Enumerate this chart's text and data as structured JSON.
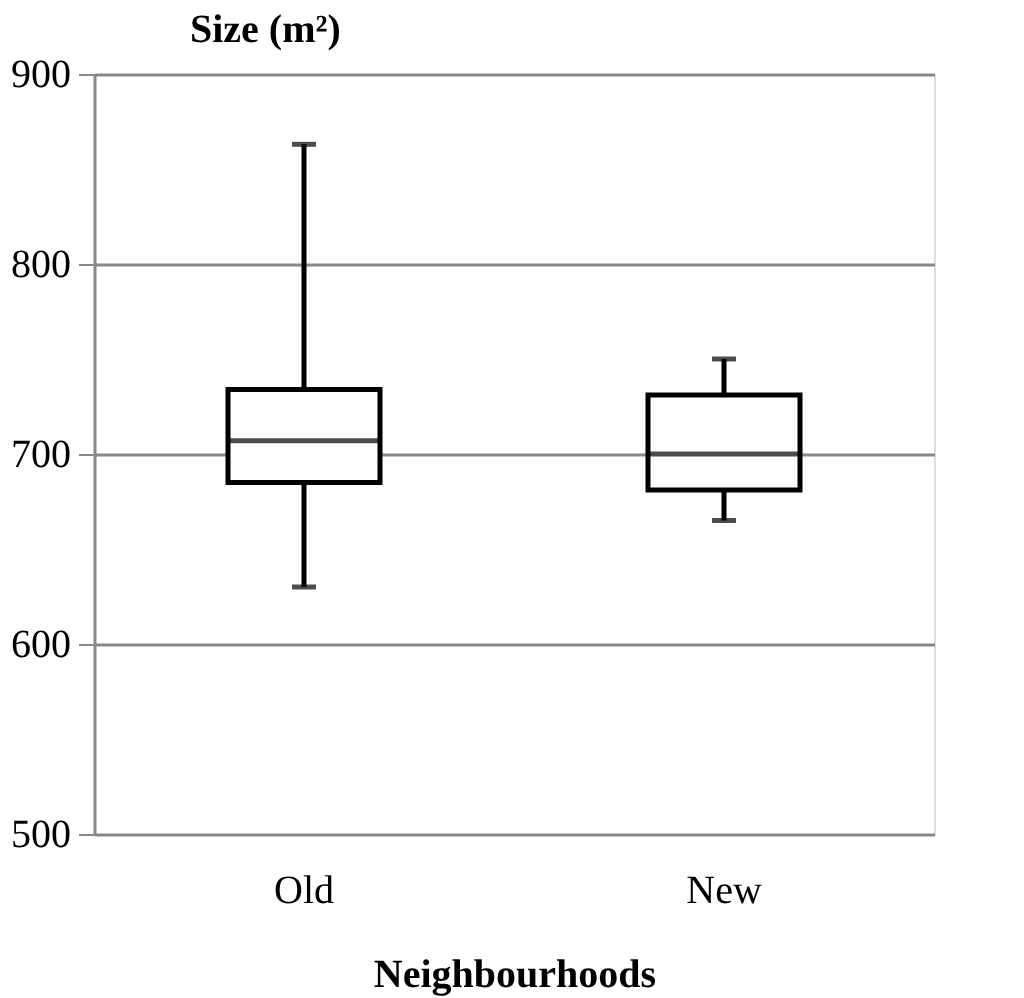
{
  "chart_data": {
    "type": "box",
    "title": "Size (m²)",
    "xlabel": "Neighbourhoods",
    "categories": [
      "Old",
      "New"
    ],
    "boxes": [
      {
        "low": 630,
        "q1": 685,
        "median": 707,
        "q3": 734,
        "high": 863
      },
      {
        "low": 665,
        "q1": 681,
        "median": 700,
        "q3": 731,
        "high": 750
      }
    ],
    "color": "#000000",
    "ylim": [
      500,
      900
    ],
    "yticks": [
      500,
      600,
      700,
      800,
      900
    ],
    "grid": "y"
  }
}
